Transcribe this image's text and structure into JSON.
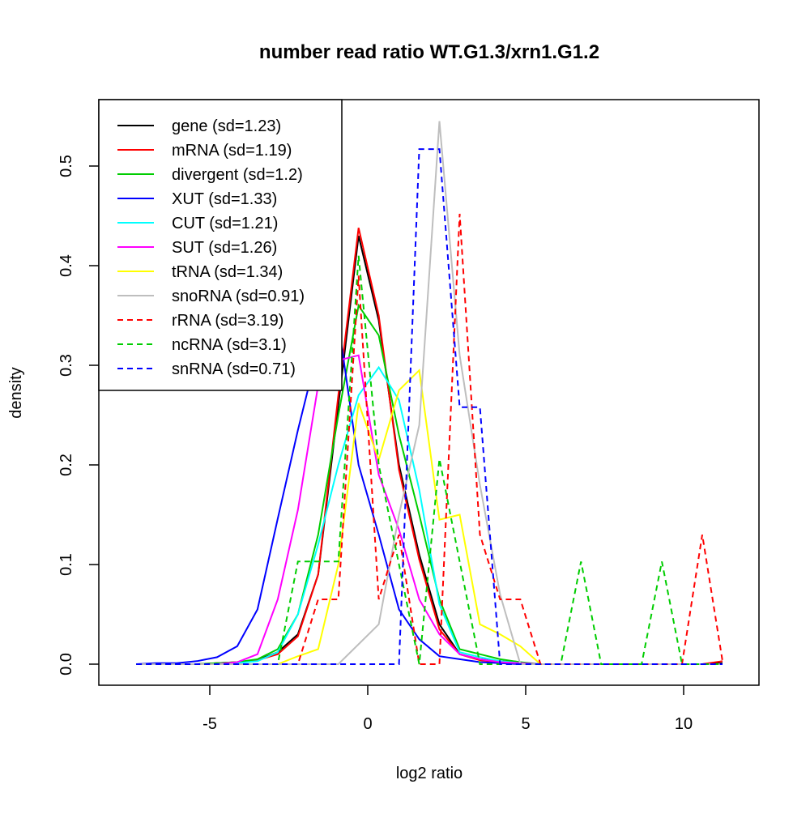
{
  "chart_data": {
    "type": "line",
    "title": "number read ratio WT.G1.3/xrn1.G1.2",
    "xlabel": "log2 ratio",
    "ylabel": "density",
    "xlim": [
      -8.5,
      12.4
    ],
    "ylim": [
      -0.021,
      0.567
    ],
    "xticks": [
      -5,
      0,
      5,
      10
    ],
    "xtick_labels": [
      "-5",
      "0",
      "5",
      "10"
    ],
    "yticks": [
      0.0,
      0.1,
      0.2,
      0.3,
      0.4,
      0.5
    ],
    "ytick_labels": [
      "0.0",
      "0.1",
      "0.2",
      "0.3",
      "0.4",
      "0.5"
    ],
    "grid": false,
    "legend_position": "top-left",
    "x": [
      -7.33,
      -6.69,
      -6.05,
      -5.41,
      -4.77,
      -4.13,
      -3.49,
      -2.85,
      -2.21,
      -1.57,
      -0.93,
      -0.29,
      0.35,
      0.99,
      1.63,
      2.27,
      2.91,
      3.55,
      4.19,
      4.83,
      5.47,
      6.11,
      6.75,
      7.39,
      8.03,
      8.67,
      9.31,
      9.95,
      10.59,
      11.23
    ],
    "series": [
      {
        "name": "gene (sd=1.23)",
        "color": "#000000",
        "dash": false,
        "values": [
          0,
          0,
          0,
          0,
          0.001,
          0.002,
          0.004,
          0.012,
          0.03,
          0.09,
          0.26,
          0.43,
          0.345,
          0.2,
          0.11,
          0.04,
          0.01,
          0.005,
          0.003,
          0.001,
          0,
          0,
          0,
          0,
          0,
          0,
          0,
          0,
          0,
          0.001
        ]
      },
      {
        "name": "mRNA (sd=1.19)",
        "color": "#FF0000",
        "dash": false,
        "values": [
          0,
          0,
          0,
          0,
          0.001,
          0.002,
          0.004,
          0.01,
          0.028,
          0.09,
          0.27,
          0.438,
          0.35,
          0.195,
          0.105,
          0.035,
          0.01,
          0.004,
          0.002,
          0.001,
          0,
          0,
          0,
          0,
          0,
          0,
          0,
          0,
          0,
          0.003
        ]
      },
      {
        "name": "divergent (sd=1.2)",
        "color": "#00CD00",
        "dash": false,
        "values": [
          0,
          0,
          0,
          0,
          0.001,
          0.002,
          0.005,
          0.015,
          0.05,
          0.13,
          0.25,
          0.36,
          0.33,
          0.23,
          0.15,
          0.065,
          0.015,
          0.01,
          0.005,
          0.002,
          0,
          0,
          0,
          0,
          0,
          0,
          0,
          0,
          0,
          0
        ]
      },
      {
        "name": "XUT (sd=1.33)",
        "color": "#0000FF",
        "dash": false,
        "values": [
          0,
          0.001,
          0.001,
          0.003,
          0.007,
          0.018,
          0.055,
          0.146,
          0.235,
          0.317,
          0.343,
          0.2,
          0.13,
          0.055,
          0.025,
          0.008,
          0.005,
          0.002,
          0.001,
          0,
          0,
          0,
          0,
          0,
          0,
          0,
          0,
          0,
          0,
          0
        ]
      },
      {
        "name": "CUT (sd=1.21)",
        "color": "#00FFFF",
        "dash": false,
        "values": [
          0,
          0,
          0,
          0,
          0,
          0.001,
          0.003,
          0.012,
          0.05,
          0.12,
          0.2,
          0.27,
          0.298,
          0.265,
          0.175,
          0.06,
          0.012,
          0.007,
          0.003,
          0.001,
          0,
          0,
          0,
          0,
          0,
          0,
          0,
          0,
          0,
          0
        ]
      },
      {
        "name": "SUT (sd=1.26)",
        "color": "#FF00FF",
        "dash": false,
        "values": [
          0,
          0,
          0,
          0,
          0,
          0.002,
          0.01,
          0.065,
          0.155,
          0.28,
          0.305,
          0.31,
          0.19,
          0.135,
          0.065,
          0.03,
          0.01,
          0.005,
          0.002,
          0.001,
          0,
          0,
          0,
          0,
          0,
          0,
          0,
          0,
          0,
          0
        ]
      },
      {
        "name": "tRNA (sd=1.34)",
        "color": "#FFFF00",
        "dash": false,
        "values": [
          0,
          0,
          0,
          0,
          0,
          0,
          0,
          0,
          0.008,
          0.015,
          0.1,
          0.262,
          0.205,
          0.275,
          0.295,
          0.145,
          0.15,
          0.04,
          0.03,
          0.018,
          0,
          0,
          0,
          0,
          0,
          0,
          0,
          0,
          0,
          0
        ]
      },
      {
        "name": "snoRNA (sd=0.91)",
        "color": "#BEBEBE",
        "dash": false,
        "values": [
          0,
          0,
          0,
          0,
          0,
          0,
          0,
          0,
          0,
          0,
          0,
          0.02,
          0.04,
          0.15,
          0.24,
          0.545,
          0.31,
          0.18,
          0.07,
          0,
          0,
          0,
          0,
          0,
          0,
          0,
          0,
          0,
          0,
          0
        ]
      },
      {
        "name": "rRNA (sd=3.19)",
        "color": "#FF0000",
        "dash": true,
        "values": [
          0,
          0,
          0,
          0,
          0,
          0,
          0,
          0,
          0,
          0.065,
          0.065,
          0.39,
          0.065,
          0.13,
          0,
          0,
          0.452,
          0.13,
          0.065,
          0.065,
          0,
          0,
          0,
          0,
          0,
          0,
          0,
          0,
          0.13,
          0.003
        ]
      },
      {
        "name": "ncRNA (sd=3.1)",
        "color": "#00CD00",
        "dash": true,
        "values": [
          0,
          0,
          0,
          0,
          0,
          0,
          0,
          0,
          0.103,
          0.103,
          0.103,
          0.41,
          0.2,
          0.1,
          0,
          0.206,
          0.103,
          0,
          0,
          0,
          0,
          0,
          0.103,
          0,
          0,
          0,
          0.103,
          0,
          0,
          0
        ]
      },
      {
        "name": "snRNA (sd=0.71)",
        "color": "#0000FF",
        "dash": true,
        "values": [
          0,
          0,
          0,
          0,
          0,
          0,
          0,
          0,
          0,
          0,
          0,
          0,
          0,
          0,
          0.517,
          0.517,
          0.258,
          0.258,
          0,
          0,
          0,
          0,
          0,
          0,
          0,
          0,
          0,
          0,
          0,
          0
        ]
      }
    ]
  }
}
